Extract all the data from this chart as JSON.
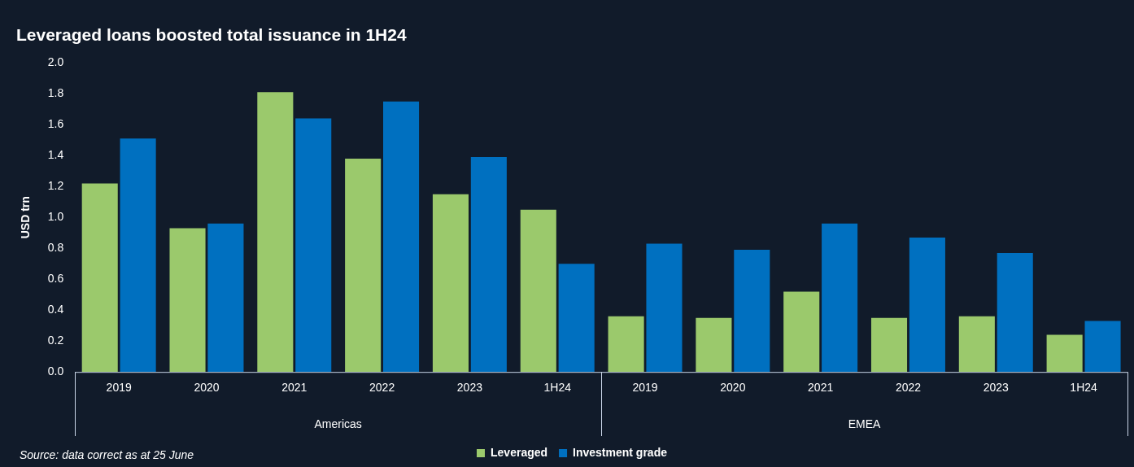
{
  "chart_data": {
    "type": "bar",
    "title": "Leveraged loans boosted total issuance in 1H24",
    "ylabel": "USD trn",
    "categories": [
      "2019",
      "2020",
      "2021",
      "2022",
      "2023",
      "1H24",
      "2019",
      "2020",
      "2021",
      "2022",
      "2023",
      "1H24"
    ],
    "series": [
      {
        "name": "Leveraged",
        "color": "#9bc96c",
        "values": [
          1.22,
          0.93,
          1.81,
          1.38,
          1.15,
          1.05,
          0.36,
          0.35,
          0.52,
          0.35,
          0.36,
          0.24
        ]
      },
      {
        "name": "Investment grade",
        "color": "#0070c0",
        "values": [
          1.51,
          0.96,
          1.64,
          1.75,
          1.39,
          0.7,
          0.83,
          0.79,
          0.96,
          0.87,
          0.77,
          0.33
        ]
      }
    ],
    "ylim": [
      0,
      2.0
    ],
    "yticks": [
      {
        "value": 0,
        "label": "0.0"
      },
      0.2,
      0.4,
      0.6,
      0.8,
      {
        "value": 1,
        "label": "1.0"
      },
      1.2,
      1.4,
      1.6,
      1.8,
      {
        "value": 2,
        "label": "2.0"
      }
    ],
    "grid": false,
    "legend": "bottom",
    "annotations": [
      "Americas",
      "EMEA",
      "Source: data correct as at 25 June"
    ]
  }
}
